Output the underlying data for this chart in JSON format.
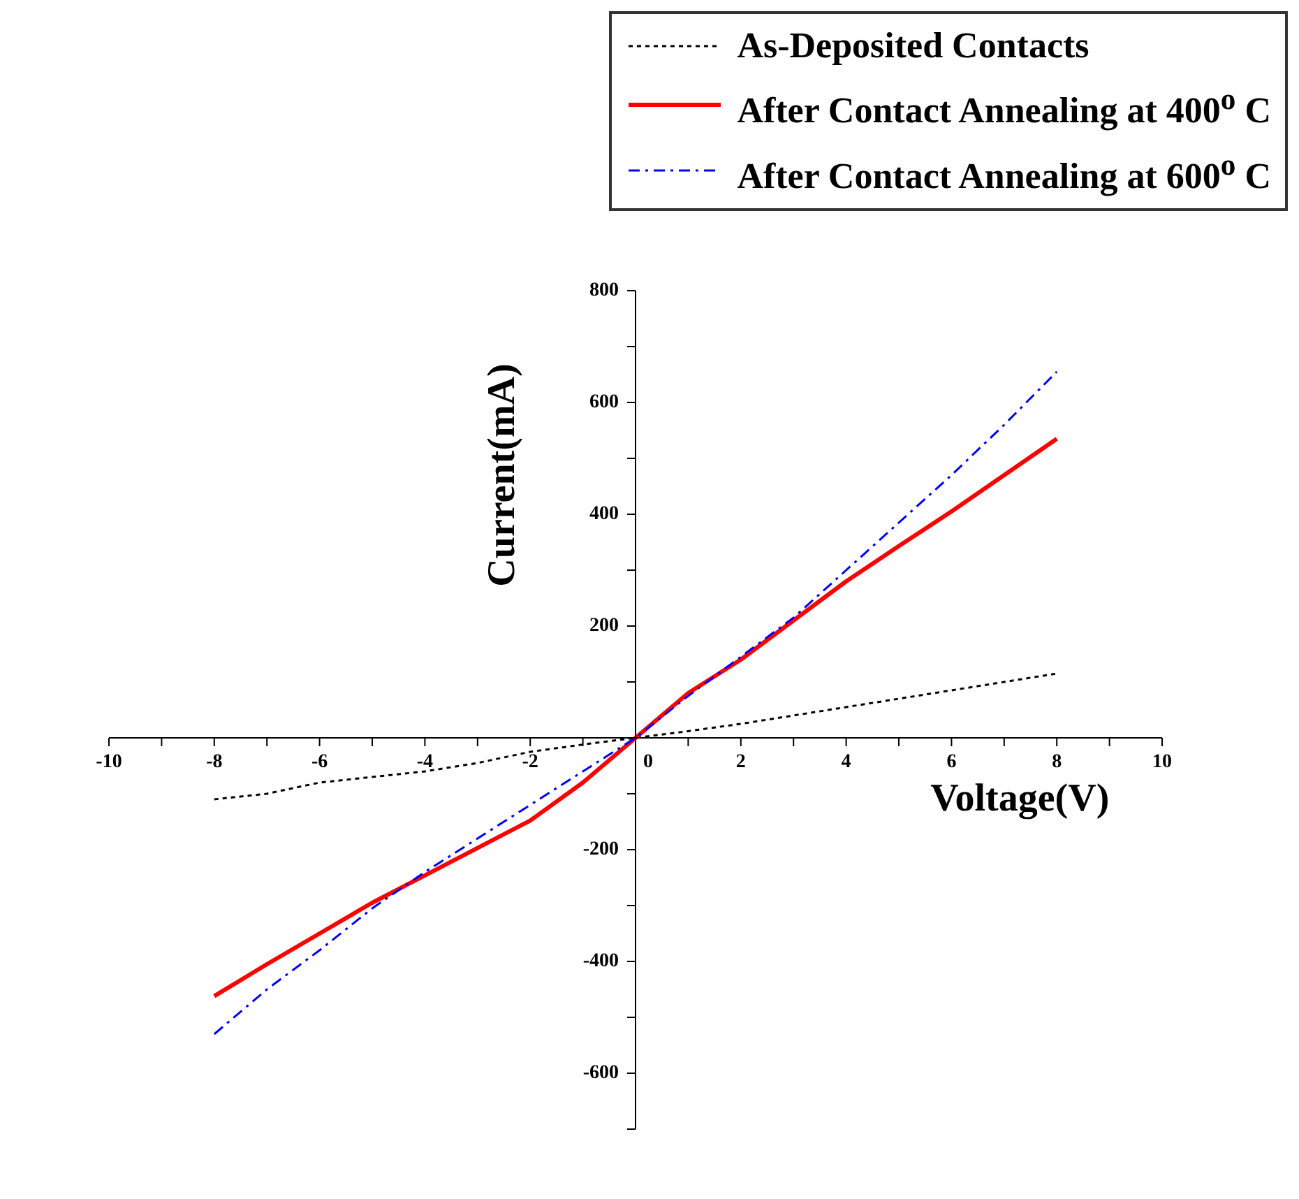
{
  "chart_data": {
    "type": "line",
    "xlabel": "Voltage(V)",
    "ylabel": "Current(mA)",
    "xlim": [
      -10,
      10
    ],
    "ylim": [
      -700,
      800
    ],
    "xticks": [
      -10,
      {
        "value": -9,
        "label": null
      },
      -8,
      {
        "value": -7,
        "label": null
      },
      -6,
      {
        "value": -5,
        "label": null
      },
      -4,
      {
        "value": -3,
        "label": null
      },
      -2,
      {
        "value": -1,
        "label": null
      },
      0,
      {
        "value": 1,
        "label": null
      },
      2,
      {
        "value": 3,
        "label": null
      },
      4,
      {
        "value": 5,
        "label": null
      },
      6,
      {
        "value": 7,
        "label": null
      },
      8,
      {
        "value": 9,
        "label": null
      },
      10
    ],
    "yticks": [
      {
        "value": -700,
        "label": null
      },
      -600,
      {
        "value": -500,
        "label": null
      },
      -400,
      {
        "value": -300,
        "label": null
      },
      -200,
      {
        "value": -100,
        "label": null
      },
      {
        "value": 0,
        "label": null
      },
      {
        "value": 100,
        "label": null
      },
      200,
      {
        "value": 300,
        "label": null
      },
      400,
      {
        "value": 500,
        "label": null
      },
      600,
      {
        "value": 700,
        "label": null
      },
      800
    ],
    "x": [
      -8,
      -7,
      -6,
      -5,
      -4,
      -3,
      -2,
      -1,
      0,
      1,
      2,
      3,
      4,
      5,
      6,
      7,
      8
    ],
    "series": [
      {
        "name": "As-Deposited Contacts",
        "color": "#000000",
        "line_style": "dotted",
        "values": [
          -110,
          -100,
          -80,
          -70,
          -60,
          -45,
          -25,
          -12,
          0,
          12,
          25,
          40,
          55,
          70,
          85,
          100,
          115
        ]
      },
      {
        "name": "After Contact Annealing at 400$^{o}$ C",
        "color": "#ff0000",
        "line_style": "solid",
        "values": [
          -462,
          -405,
          -350,
          -295,
          -246,
          -197,
          -148,
          -80,
          0,
          80,
          140,
          210,
          280,
          343,
          405,
          470,
          535
        ]
      },
      {
        "name": "After Contact Annealing at 600$^{o}$ C",
        "color": "#0000ff",
        "line_style": "dashed",
        "values": [
          -530,
          -450,
          -380,
          -305,
          -240,
          -180,
          -120,
          -60,
          0,
          75,
          145,
          215,
          300,
          385,
          470,
          560,
          655
        ]
      }
    ],
    "legend": "top right",
    "grid": false,
    "marker": "none"
  }
}
